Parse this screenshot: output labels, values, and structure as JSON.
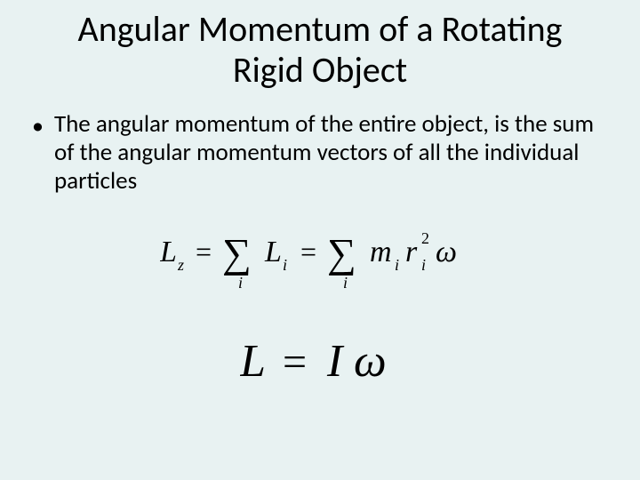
{
  "background_color": "#e8f2f2",
  "text_color": "#000000",
  "title": "Angular Momentum of a Rotating Rigid Object",
  "title_fontsize": 40,
  "bullet": {
    "marker": "•",
    "text": "The angular momentum of the entire object, is the sum of the angular momentum vectors  of all the individual particles",
    "fontsize": 27
  },
  "equation1": {
    "latex": "L_z = \\sum_i L_i = \\sum_i m_i r_i^2 \\omega",
    "font_family": "serif-italic",
    "color": "#000000",
    "approx_fontsize_pt": 30
  },
  "equation2": {
    "latex": "L = I\\omega",
    "font_family": "serif-italic",
    "color": "#000000",
    "approx_fontsize_pt": 44
  }
}
